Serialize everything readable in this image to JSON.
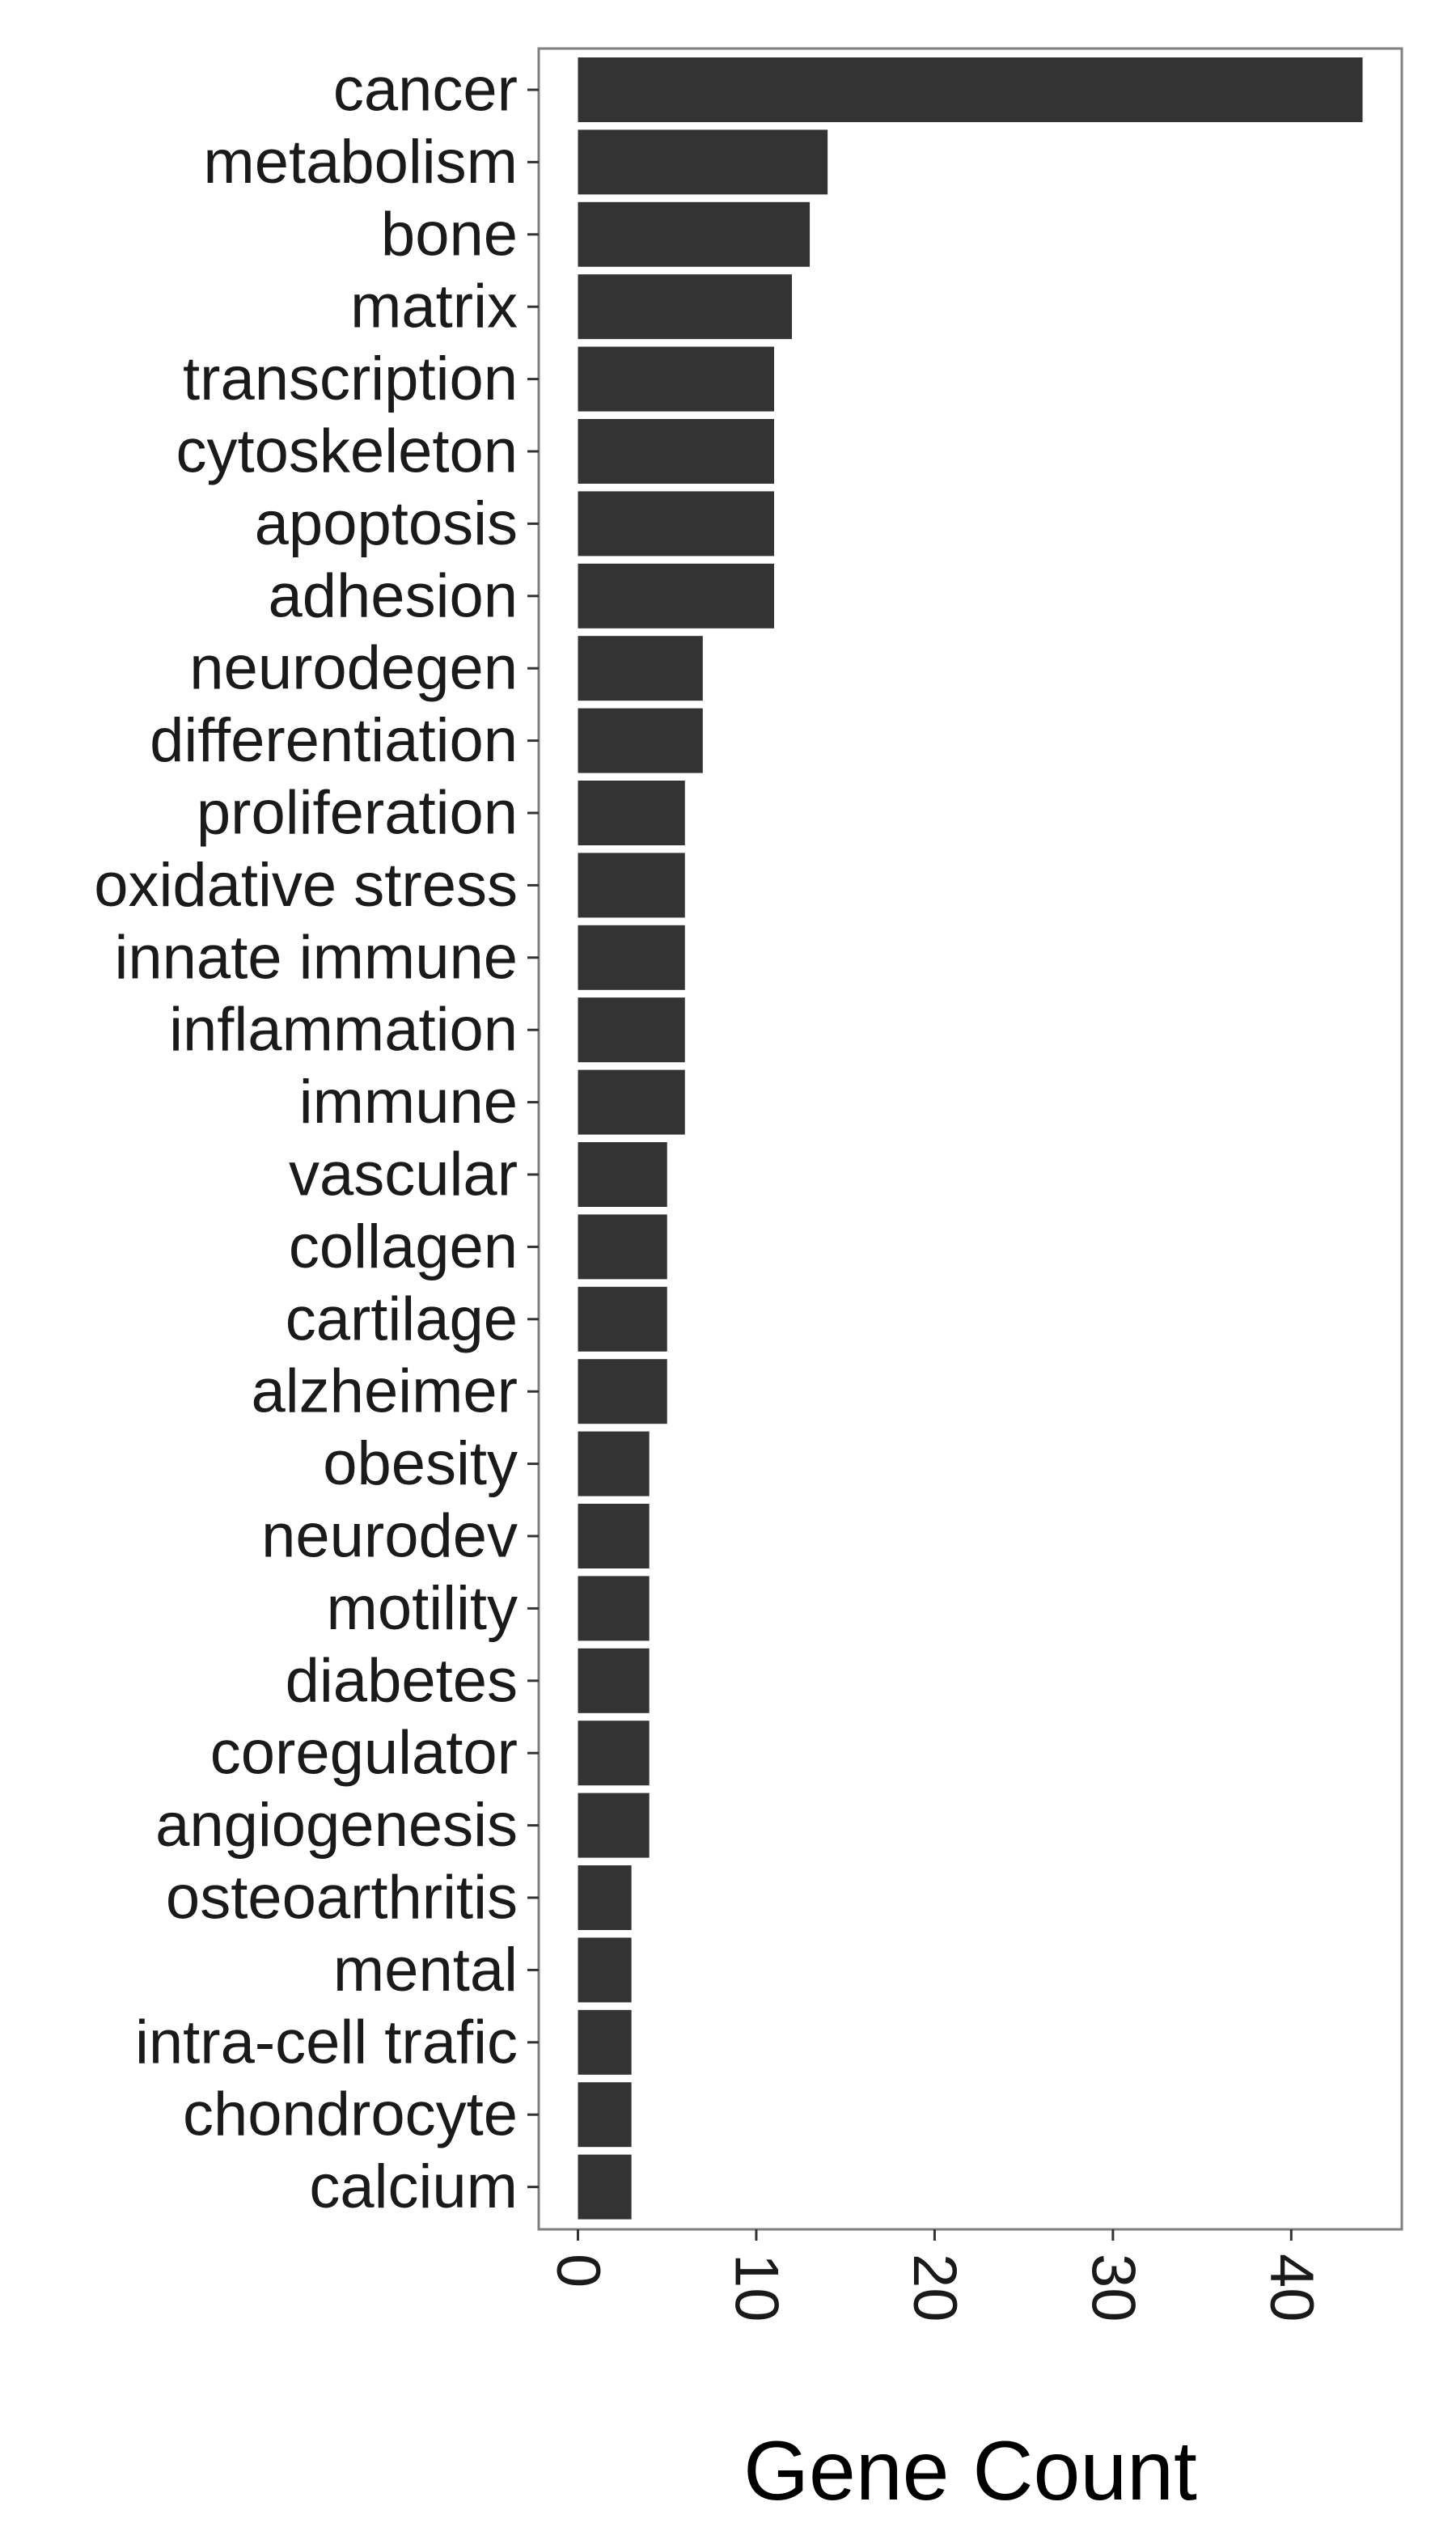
{
  "chart_data": {
    "type": "bar",
    "orientation": "horizontal",
    "categories": [
      "cancer",
      "metabolism",
      "bone",
      "matrix",
      "transcription",
      "cytoskeleton",
      "apoptosis",
      "adhesion",
      "neurodegen",
      "differentiation",
      "proliferation",
      "oxidative stress",
      "innate immune",
      "inflammation",
      "immune",
      "vascular",
      "collagen",
      "cartilage",
      "alzheimer",
      "obesity",
      "neurodev",
      "motility",
      "diabetes",
      "coregulator",
      "angiogenesis",
      "osteoarthritis",
      "mental",
      "intra-cell trafic",
      "chondrocyte",
      "calcium"
    ],
    "values": [
      44,
      14,
      13,
      12,
      11,
      11,
      11,
      11,
      7,
      7,
      6,
      6,
      6,
      6,
      6,
      5,
      5,
      5,
      5,
      4,
      4,
      4,
      4,
      4,
      4,
      3,
      3,
      3,
      3,
      3
    ],
    "title": "",
    "xlabel": "Gene Count",
    "ylabel": "",
    "xlim": [
      -2.2,
      46.2
    ],
    "ticks": [
      0,
      10,
      20,
      30,
      40
    ],
    "tick_labels": [
      "0",
      "10",
      "20",
      "30",
      "40"
    ],
    "grid": false,
    "legend": "none",
    "colors": {
      "bar": "#333333",
      "panel_border": "#7f7f7f",
      "axis_ticks": "#333333",
      "text": "#1a1a1a"
    }
  }
}
